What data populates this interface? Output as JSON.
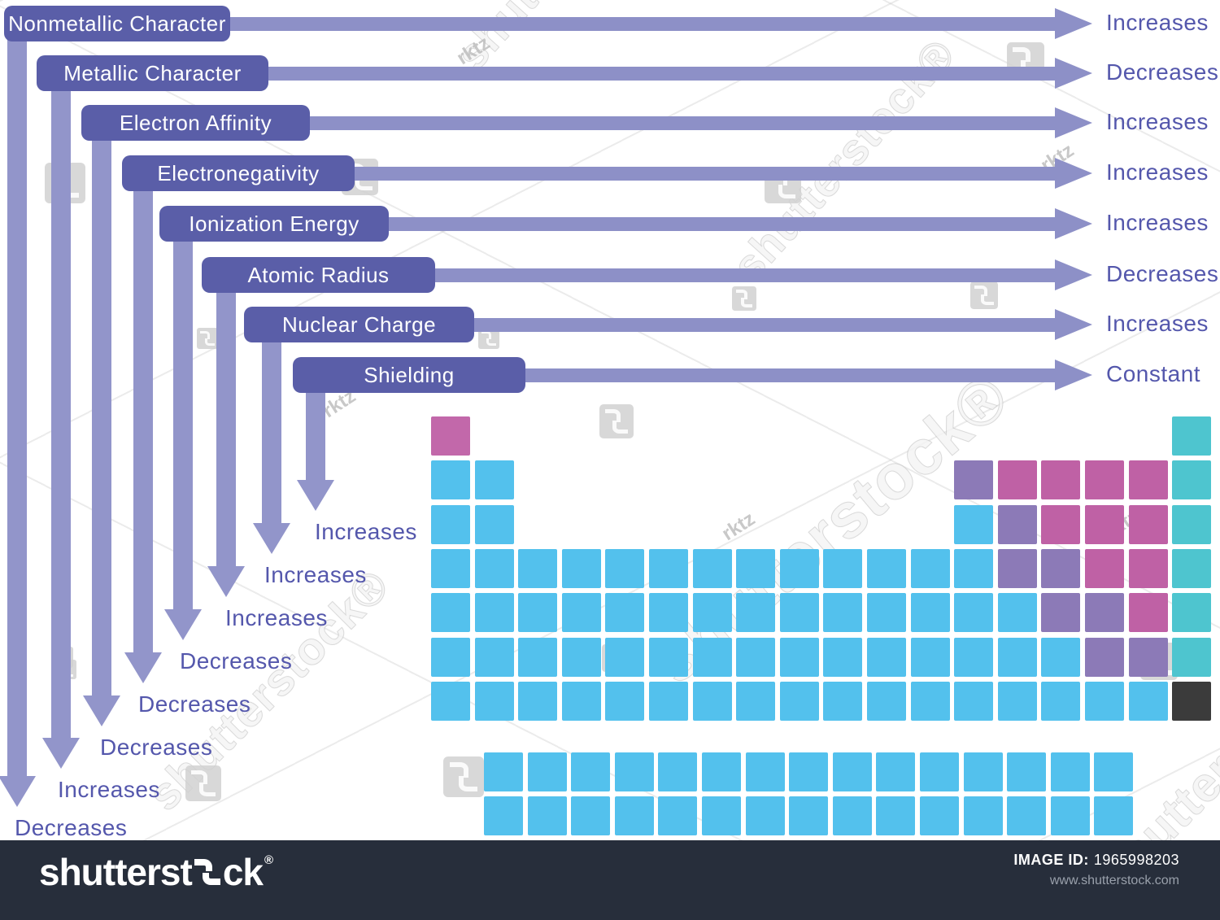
{
  "trends": [
    {
      "property": "Nonmetallic Character",
      "across": "Increases",
      "down": "Decreases"
    },
    {
      "property": "Metallic Character",
      "across": "Decreases",
      "down": "Increases"
    },
    {
      "property": "Electron Affinity",
      "across": "Increases",
      "down": "Decreases"
    },
    {
      "property": "Electronegativity",
      "across": "Increases",
      "down": "Decreases"
    },
    {
      "property": "Ionization Energy",
      "across": "Increases",
      "down": "Decreases"
    },
    {
      "property": "Atomic Radius",
      "across": "Decreases",
      "down": "Increases"
    },
    {
      "property": "Nuclear Charge",
      "across": "Increases",
      "down": "Increases"
    },
    {
      "property": "Shielding",
      "across": "Constant",
      "down": "Increases"
    }
  ],
  "colors": {
    "pill": "#5a5ea8",
    "h_arrow": "#8d90c7",
    "v_arrow": "#9295ca",
    "trend_text": "#5457ac",
    "metal": "#53c1ed",
    "nonmetal": "#bf61a5",
    "metalloid": "#8c7ab7",
    "noble": "#4ec5cf",
    "hydrogen": "#c268aa",
    "unknown": "#3b3b3b",
    "footer_bar": "#272e3b"
  },
  "periodic_table": {
    "legend_note": "category color blocks only, no element symbols shown",
    "main_rows": [
      "H................G",
      "MM..........LNNNNG",
      "MM..........MLNNNG",
      "MMMMMMMMMMMMMLLNNG",
      "MMMMMMMMMMMMMMLLNG",
      "MMMMMMMMMMMMMMMLLG",
      "MMMMMMMMMMMMMMMMMU"
    ],
    "bottom_rows": [
      "MMMMMMMMMMMMMMM",
      "MMMMMMMMMMMMMMM"
    ],
    "category_codes": {
      "H": "hydrogen",
      "M": "metal",
      "N": "nonmetal",
      "L": "metalloid",
      "G": "noble",
      "U": "unknown"
    }
  },
  "watermark": {
    "tile_text": "shutterstock",
    "reg": "®",
    "small_text": "rktz"
  },
  "footer": {
    "brand_prefix": "shutterst",
    "brand_suffix": "ck",
    "reg": "®",
    "image_id_label": "IMAGE ID:",
    "image_id": "1965998203",
    "url": "www.shutterstock.com"
  }
}
